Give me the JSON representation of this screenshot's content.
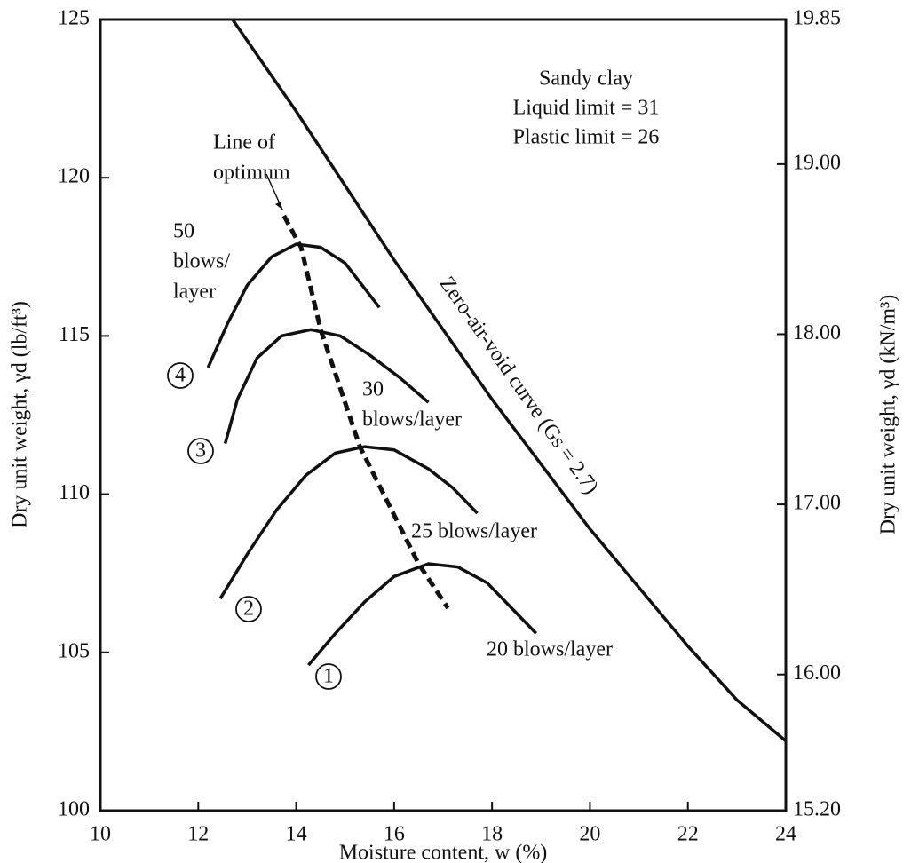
{
  "chart_data": {
    "type": "line",
    "xlabel": "Moisture content, w (%)",
    "ylabel": "Dry unit weight, γd (lb/ft³)",
    "y2label": "Dry unit weight, γd (kN/m³)",
    "annotation": [
      "Sandy clay",
      "Liquid limit = 31",
      "Plastic limit = 26"
    ],
    "xlim": [
      10,
      24
    ],
    "xticks": [
      10,
      12,
      14,
      16,
      18,
      20,
      22,
      24
    ],
    "ylim": [
      100,
      125
    ],
    "yticks": [
      100,
      105,
      110,
      115,
      120,
      125
    ],
    "y2lim": [
      15.2,
      19.85
    ],
    "y2ticks": [
      {
        "value": 15.2,
        "label": "15.20"
      },
      {
        "value": 16,
        "label": "16.00"
      },
      {
        "value": 17,
        "label": "17.00"
      },
      {
        "value": 18,
        "label": "18.00"
      },
      {
        "value": 19,
        "label": "19.00"
      },
      19.85
    ],
    "series": [
      {
        "name_lines": [
          "50",
          "blows/",
          "layer"
        ],
        "marker": "4",
        "color": "#111",
        "style": "solid",
        "x": [
          12.2,
          12.6,
          13.0,
          13.5,
          14.0,
          14.5,
          15.0,
          15.7
        ],
        "values": [
          114.0,
          115.4,
          116.6,
          117.5,
          117.9,
          117.8,
          117.3,
          115.9
        ]
      },
      {
        "name_lines": [
          "30",
          "blows/layer"
        ],
        "marker": "3",
        "color": "#111",
        "style": "solid",
        "x": [
          12.55,
          12.8,
          13.2,
          13.7,
          14.3,
          14.9,
          15.5,
          16.1,
          16.7
        ],
        "values": [
          111.6,
          113.0,
          114.3,
          115.0,
          115.2,
          115.0,
          114.4,
          113.7,
          112.9
        ]
      },
      {
        "name_lines": [
          "25 blows/layer"
        ],
        "marker": "2",
        "color": "#111",
        "style": "solid",
        "x": [
          12.45,
          13.0,
          13.6,
          14.2,
          14.8,
          15.4,
          16.0,
          16.7,
          17.2,
          17.7
        ],
        "values": [
          106.7,
          108.1,
          109.5,
          110.6,
          111.3,
          111.5,
          111.4,
          110.8,
          110.2,
          109.4
        ]
      },
      {
        "name_lines": [
          "20 blows/layer"
        ],
        "marker": "1",
        "color": "#111",
        "style": "solid",
        "x": [
          14.25,
          14.8,
          15.4,
          16.0,
          16.7,
          17.3,
          17.9,
          18.4,
          18.9
        ],
        "values": [
          104.6,
          105.6,
          106.6,
          107.4,
          107.8,
          107.7,
          107.2,
          106.4,
          105.6
        ]
      },
      {
        "name_lines": [
          "Line of",
          "optimum"
        ],
        "color": "#111",
        "style": "dashed",
        "x": [
          13.75,
          14.1,
          14.5,
          15.3,
          16.5,
          17.1
        ],
        "values": [
          118.8,
          117.8,
          115.2,
          111.5,
          107.8,
          106.4
        ]
      },
      {
        "name_lines": [
          "Zero-air-void curve (Gs = 2.7)"
        ],
        "color": "#111",
        "style": "solid",
        "x": [
          12.7,
          14,
          16,
          18,
          20,
          22,
          23,
          24
        ],
        "values": [
          125,
          122.1,
          117.4,
          113.0,
          108.9,
          105.2,
          103.5,
          102.2
        ]
      }
    ]
  }
}
